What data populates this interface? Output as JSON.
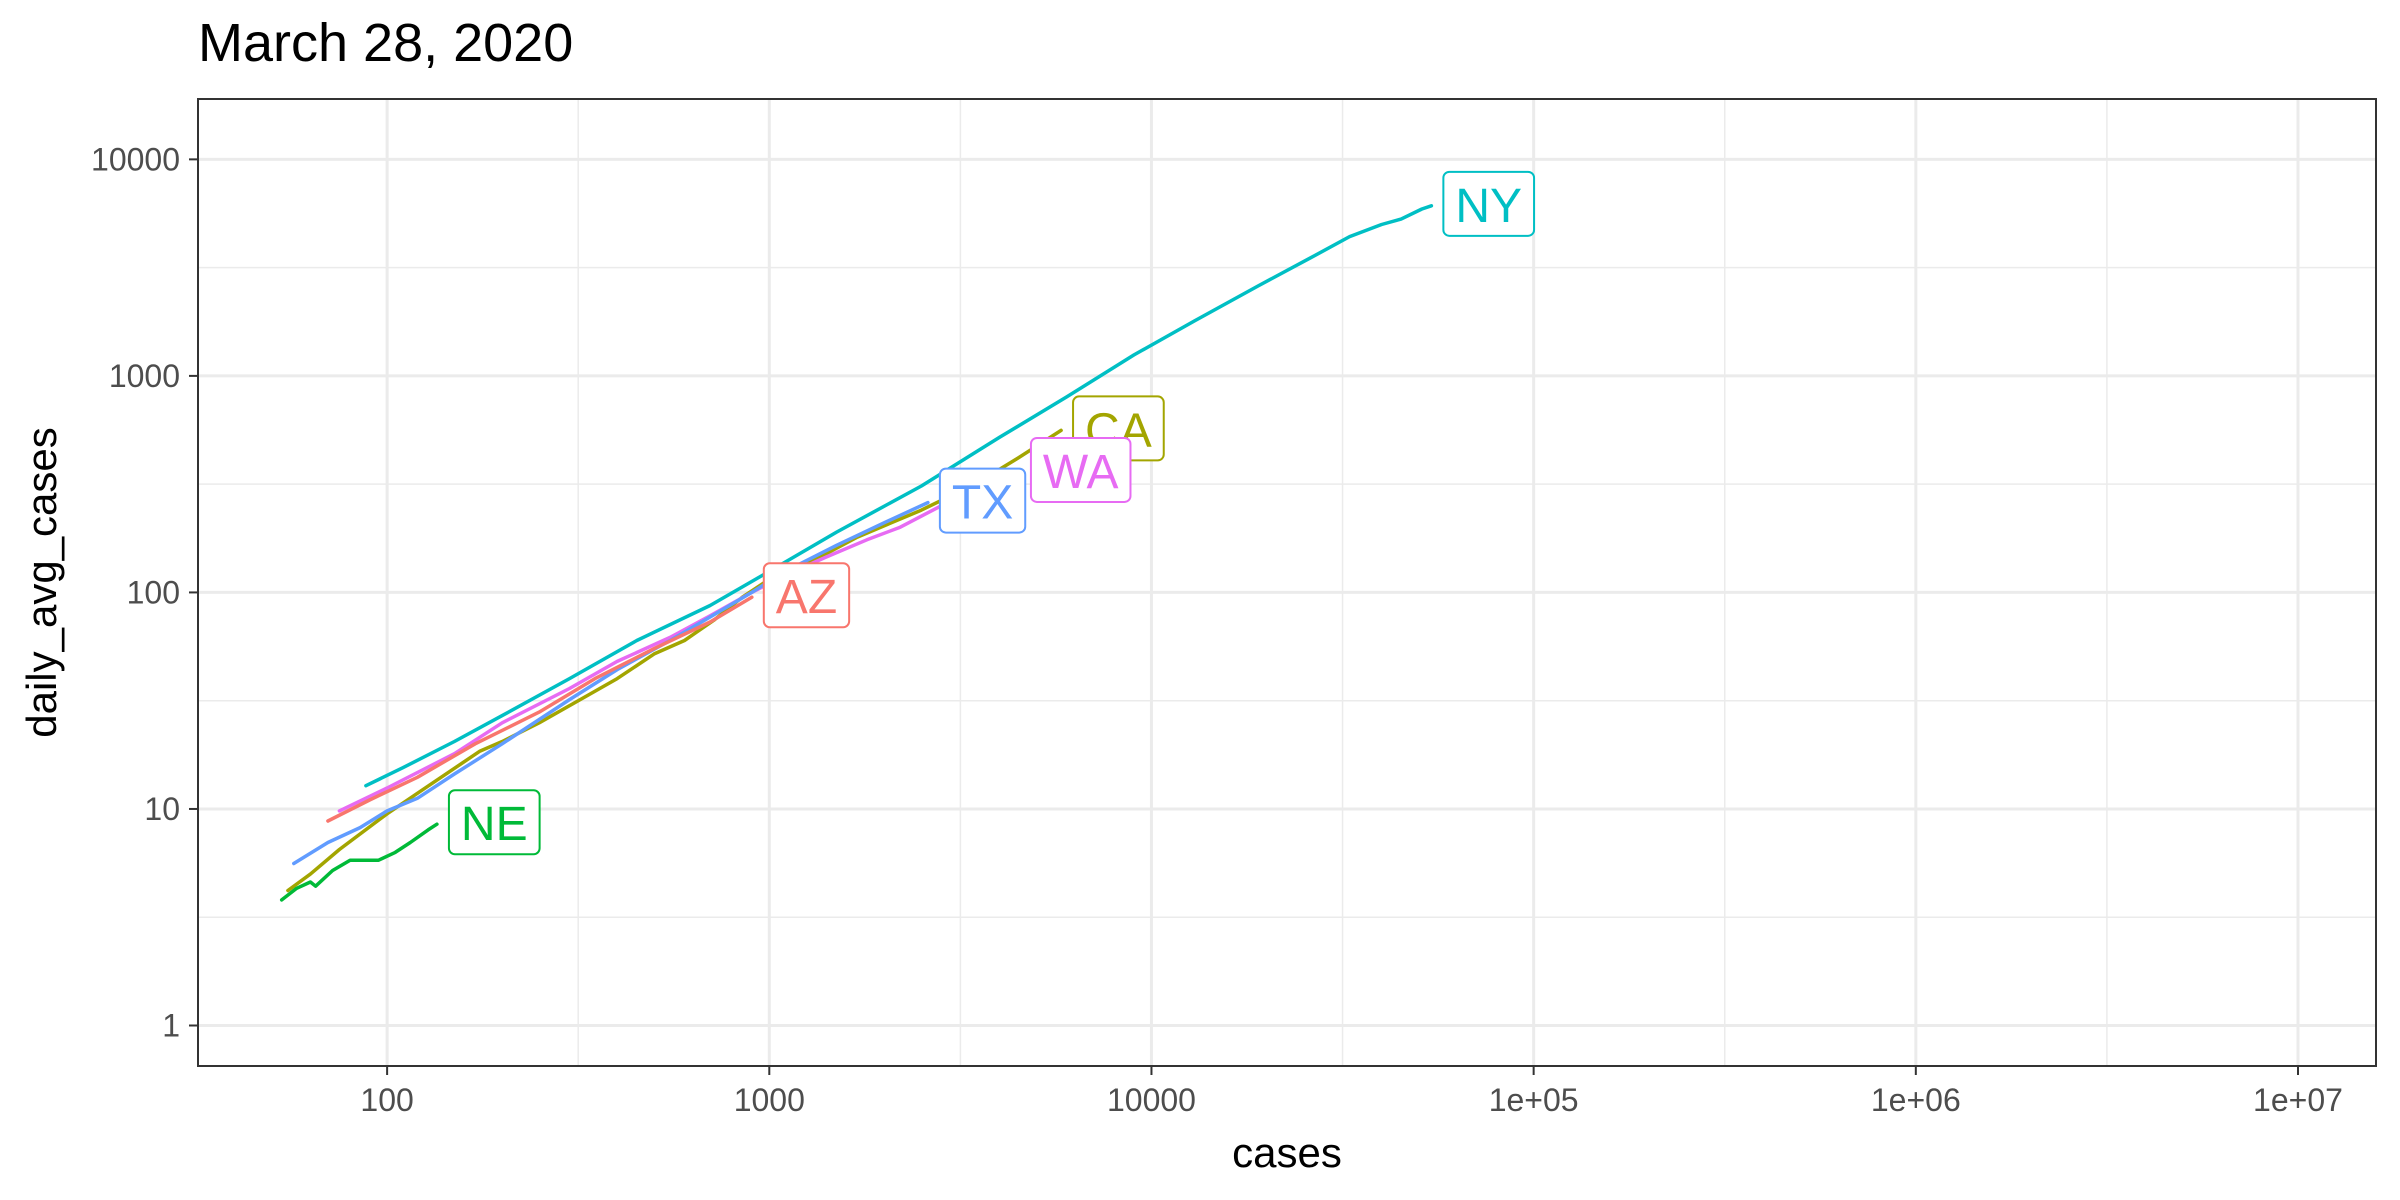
{
  "chart_data": {
    "type": "line",
    "title": "March 28, 2020",
    "xlabel": "cases",
    "ylabel": "daily_avg_cases",
    "x_scale": "log10",
    "y_scale": "log10",
    "xlim": [
      32,
      16000000
    ],
    "ylim": [
      0.65,
      19000
    ],
    "x_ticks": [
      {
        "value": 100,
        "label": "100"
      },
      {
        "value": 1000,
        "label": "1000"
      },
      {
        "value": 10000,
        "label": "10000"
      },
      {
        "value": 100000,
        "label": "1e+05"
      },
      {
        "value": 1000000,
        "label": "1e+06"
      },
      {
        "value": 10000000,
        "label": "1e+07"
      }
    ],
    "y_ticks": [
      {
        "value": 1,
        "label": "1"
      },
      {
        "value": 10,
        "label": "10"
      },
      {
        "value": 100,
        "label": "100"
      },
      {
        "value": 1000,
        "label": "1000"
      },
      {
        "value": 10000,
        "label": "10000"
      }
    ],
    "grid": true,
    "legend": "none",
    "series": [
      {
        "name": "CA",
        "color": "#A3A500",
        "points": [
          [
            55,
            4.2
          ],
          [
            63,
            5.0
          ],
          [
            75,
            6.5
          ],
          [
            100,
            9.5
          ],
          [
            130,
            13
          ],
          [
            175,
            18.5
          ],
          [
            200,
            20.5
          ],
          [
            250,
            25
          ],
          [
            320,
            32
          ],
          [
            400,
            40
          ],
          [
            500,
            52
          ],
          [
            600,
            60
          ],
          [
            720,
            75
          ],
          [
            850,
            95
          ],
          [
            1000,
            115
          ],
          [
            1300,
            140
          ],
          [
            1700,
            180
          ],
          [
            2500,
            240
          ],
          [
            3500,
            320
          ],
          [
            4500,
            420
          ],
          [
            5800,
            560
          ]
        ],
        "label_at": [
          5800,
          560
        ]
      },
      {
        "name": "WA",
        "color": "#E76BF3",
        "points": [
          [
            75,
            9.8
          ],
          [
            100,
            12.5
          ],
          [
            150,
            18
          ],
          [
            200,
            25
          ],
          [
            300,
            36
          ],
          [
            400,
            48
          ],
          [
            550,
            62
          ],
          [
            700,
            78
          ],
          [
            900,
            100
          ],
          [
            1100,
            120
          ],
          [
            1400,
            145
          ],
          [
            1800,
            175
          ],
          [
            2200,
            200
          ],
          [
            2800,
            250
          ],
          [
            3500,
            300
          ],
          [
            4500,
            360
          ]
        ],
        "label_at": [
          4500,
          360
        ]
      },
      {
        "name": "TX",
        "color": "#619CFF",
        "points": [
          [
            57,
            5.6
          ],
          [
            70,
            7.0
          ],
          [
            85,
            8.2
          ],
          [
            100,
            9.8
          ],
          [
            120,
            11.2
          ],
          [
            150,
            14.5
          ],
          [
            200,
            20
          ],
          [
            300,
            32
          ],
          [
            400,
            44
          ],
          [
            550,
            60
          ],
          [
            700,
            77
          ],
          [
            900,
            100
          ],
          [
            1100,
            125
          ],
          [
            1500,
            165
          ],
          [
            2000,
            210
          ],
          [
            2600,
            260
          ]
        ],
        "label_at": [
          2600,
          260
        ]
      },
      {
        "name": "NE",
        "color": "#00BA38",
        "points": [
          [
            53,
            3.8
          ],
          [
            58,
            4.3
          ],
          [
            63,
            4.6
          ],
          [
            65,
            4.4
          ],
          [
            72,
            5.2
          ],
          [
            80,
            5.8
          ],
          [
            95,
            5.8
          ],
          [
            105,
            6.3
          ],
          [
            115,
            7.0
          ],
          [
            128,
            8.0
          ],
          [
            135,
            8.5
          ]
        ],
        "label_at": [
          135,
          8.5
        ]
      },
      {
        "name": "AZ",
        "color": "#F8766D",
        "points": [
          [
            70,
            8.8
          ],
          [
            90,
            11
          ],
          [
            120,
            14
          ],
          [
            170,
            20
          ],
          [
            250,
            28
          ],
          [
            350,
            40
          ],
          [
            500,
            55
          ],
          [
            700,
            73
          ],
          [
            900,
            95
          ]
        ],
        "label_at": [
          900,
          95
        ]
      },
      {
        "name": "NY",
        "color": "#00BFC4",
        "points": [
          [
            88,
            12.8
          ],
          [
            110,
            15.5
          ],
          [
            150,
            20.5
          ],
          [
            200,
            27
          ],
          [
            300,
            40
          ],
          [
            450,
            60
          ],
          [
            700,
            87
          ],
          [
            1000,
            125
          ],
          [
            1500,
            190
          ],
          [
            2500,
            310
          ],
          [
            4000,
            520
          ],
          [
            6000,
            800
          ],
          [
            9000,
            1250
          ],
          [
            13000,
            1800
          ],
          [
            19000,
            2600
          ],
          [
            26000,
            3500
          ],
          [
            33000,
            4400
          ],
          [
            40000,
            5000
          ],
          [
            45000,
            5300
          ],
          [
            51000,
            5900
          ],
          [
            54000,
            6100
          ]
        ],
        "label_at": [
          54000,
          6100
        ]
      }
    ]
  }
}
